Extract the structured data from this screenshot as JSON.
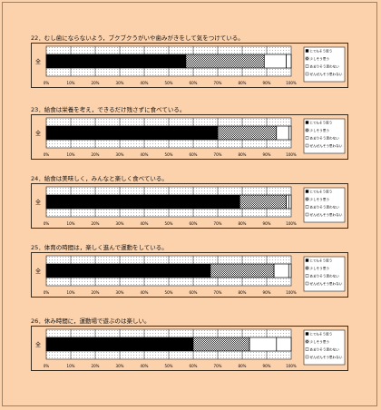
{
  "page": {
    "background": "#fcd2ad"
  },
  "legend_labels": [
    "とてもそう思う",
    "少しそう思う",
    "あまりそう思わない",
    "ぜんぜんそう思わない"
  ],
  "series_colors": [
    "#000000",
    "#b8b8b8",
    "#ffffff",
    "#ffffff"
  ],
  "chart_data": [
    {
      "type": "bar",
      "title": "22．むし歯にならないよう，ブクブクうがいや歯みがきをして気をつけている。",
      "categories": [
        "全"
      ],
      "series": [
        {
          "name": "とてもそう思う",
          "values": [
            57
          ]
        },
        {
          "name": "少しそう思う",
          "values": [
            32
          ]
        },
        {
          "name": "あまりそう思わない",
          "values": [
            9
          ]
        },
        {
          "name": "ぜんぜんそう思わない",
          "values": [
            2
          ]
        }
      ],
      "x_ticks": [
        "0%",
        "10%",
        "20%",
        "30%",
        "40%",
        "50%",
        "60%",
        "70%",
        "80%",
        "90%",
        "100%"
      ],
      "xlim": [
        0,
        100
      ]
    },
    {
      "type": "bar",
      "title": "23．給食は栄養を考え，できるだけ残さずに食べている。",
      "categories": [
        "全"
      ],
      "series": [
        {
          "name": "とてもそう思う",
          "values": [
            70
          ]
        },
        {
          "name": "少しそう思う",
          "values": [
            24
          ]
        },
        {
          "name": "あまりそう思わない",
          "values": [
            5
          ]
        },
        {
          "name": "ぜんぜんそう思わない",
          "values": [
            1
          ]
        }
      ],
      "x_ticks": [
        "0%",
        "10%",
        "20%",
        "30%",
        "40%",
        "50%",
        "60%",
        "70%",
        "80%",
        "90%",
        "100%"
      ],
      "xlim": [
        0,
        100
      ]
    },
    {
      "type": "bar",
      "title": "24．給食は美味しく，みんなと楽しく食べている。",
      "categories": [
        "全"
      ],
      "series": [
        {
          "name": "とてもそう思う",
          "values": [
            79
          ]
        },
        {
          "name": "少しそう思う",
          "values": [
            19
          ]
        },
        {
          "name": "あまりそう思わない",
          "values": [
            1
          ]
        },
        {
          "name": "ぜんぜんそう思わない",
          "values": [
            1
          ]
        }
      ],
      "x_ticks": [
        "0%",
        "10%",
        "20%",
        "30%",
        "40%",
        "50%",
        "60%",
        "70%",
        "80%",
        "90%",
        "100%"
      ],
      "xlim": [
        0,
        100
      ]
    },
    {
      "type": "bar",
      "title": "25．体育の時間は，楽しく進んで運動をしている。",
      "categories": [
        "全"
      ],
      "series": [
        {
          "name": "とてもそう思う",
          "values": [
            67
          ]
        },
        {
          "name": "少しそう思う",
          "values": [
            26
          ]
        },
        {
          "name": "あまりそう思わない",
          "values": [
            6
          ]
        },
        {
          "name": "ぜんぜんそう思わない",
          "values": [
            1
          ]
        }
      ],
      "x_ticks": [
        "0%",
        "10%",
        "20%",
        "30%",
        "40%",
        "50%",
        "60%",
        "70%",
        "80%",
        "90%",
        "100%"
      ],
      "xlim": [
        0,
        100
      ]
    },
    {
      "type": "bar",
      "title": "26．休み時間に，運動場で遊ぶのは楽しい。",
      "categories": [
        "全"
      ],
      "series": [
        {
          "name": "とてもそう思う",
          "values": [
            60
          ]
        },
        {
          "name": "少しそう思う",
          "values": [
            23
          ]
        },
        {
          "name": "あまりそう思わない",
          "values": [
            11
          ]
        },
        {
          "name": "ぜんぜんそう思わない",
          "values": [
            6
          ]
        }
      ],
      "x_ticks": [
        "0%",
        "10%",
        "20%",
        "30%",
        "40%",
        "50%",
        "60%",
        "70%",
        "80%",
        "90%",
        "100%"
      ],
      "xlim": [
        0,
        100
      ]
    }
  ]
}
